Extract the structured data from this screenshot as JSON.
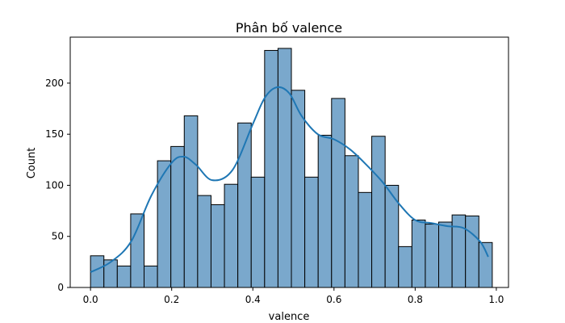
{
  "chart_data": {
    "type": "bar",
    "title": "Phân bố valence",
    "xlabel": "valence",
    "ylabel": "Count",
    "xlim": [
      -0.05,
      1.03
    ],
    "ylim": [
      0,
      245
    ],
    "xticks": [
      0.0,
      0.2,
      0.4,
      0.6,
      0.8,
      1.0
    ],
    "xtick_labels": [
      "0.0",
      "0.2",
      "0.4",
      "0.6",
      "0.8",
      "1.0"
    ],
    "yticks": [
      0,
      50,
      100,
      150,
      200
    ],
    "ytick_labels": [
      "0",
      "50",
      "100",
      "150",
      "200"
    ],
    "grid": false,
    "bin_edges": [
      0.0,
      0.033,
      0.066,
      0.099,
      0.132,
      0.165,
      0.198,
      0.231,
      0.264,
      0.297,
      0.33,
      0.363,
      0.396,
      0.429,
      0.462,
      0.495,
      0.528,
      0.561,
      0.594,
      0.627,
      0.66,
      0.693,
      0.726,
      0.759,
      0.792,
      0.825,
      0.858,
      0.891,
      0.924,
      0.957,
      0.99
    ],
    "counts": [
      31,
      27,
      21,
      72,
      21,
      124,
      138,
      168,
      90,
      81,
      101,
      161,
      108,
      232,
      234,
      193,
      108,
      149,
      185,
      129,
      93,
      148,
      100,
      40,
      66,
      62,
      64,
      71,
      70,
      44
    ],
    "kde": {
      "x": [
        0.0,
        0.05,
        0.1,
        0.15,
        0.2,
        0.23,
        0.26,
        0.3,
        0.35,
        0.4,
        0.43,
        0.46,
        0.49,
        0.52,
        0.56,
        0.6,
        0.64,
        0.68,
        0.72,
        0.76,
        0.8,
        0.84,
        0.88,
        0.92,
        0.96,
        0.98
      ],
      "y": [
        15,
        25,
        45,
        90,
        122,
        128,
        120,
        105,
        115,
        160,
        186,
        196,
        190,
        168,
        150,
        145,
        135,
        120,
        103,
        82,
        66,
        63,
        60,
        58,
        45,
        30
      ]
    },
    "colors": {
      "bar_fill": "#7aa8cc",
      "bar_edge": "#000000",
      "kde_line": "#1f77b4"
    }
  }
}
